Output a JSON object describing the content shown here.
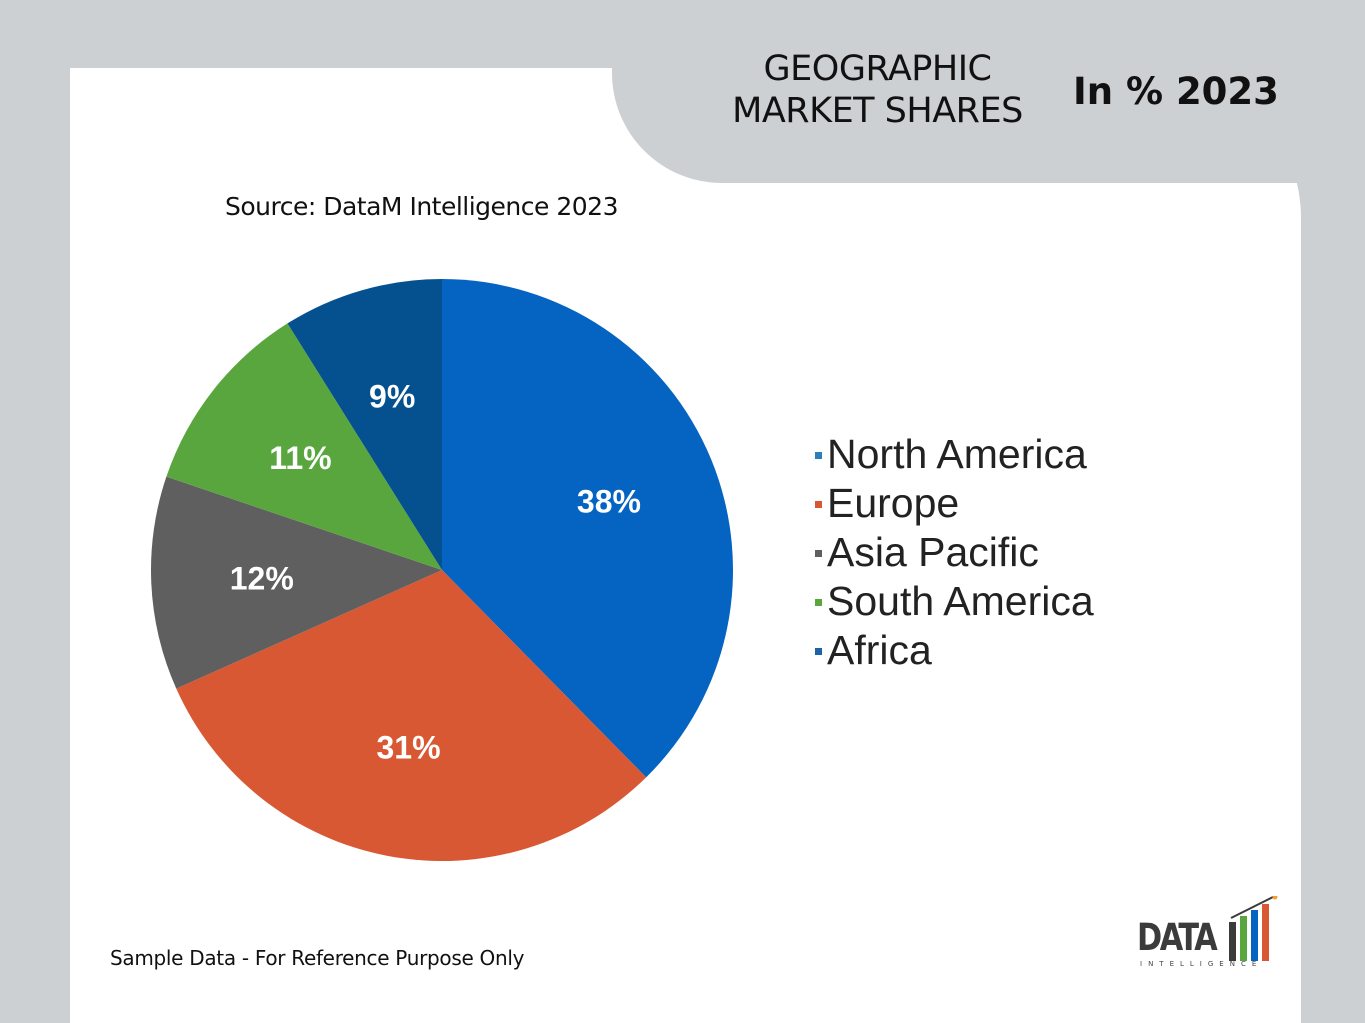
{
  "header": {
    "title_line1": "GEOGRAPHIC",
    "title_line2": "MARKET SHARES",
    "subtitle": "In % 2023"
  },
  "source": "Source: DataM Intelligence 2023",
  "footnote": "Sample Data - For Reference Purpose Only",
  "logo": {
    "name": "DATA",
    "tagline": "INTELLIGENCE"
  },
  "chart_data": {
    "type": "pie",
    "categories": [
      "North America",
      "Europe",
      "Asia Pacific",
      "South America",
      "Africa"
    ],
    "values": [
      38,
      31,
      12,
      11,
      9
    ],
    "labels": [
      "38%",
      "31%",
      "12%",
      "11%",
      "9%"
    ],
    "colors": [
      "#0563c1",
      "#d85834",
      "#5f5f5f",
      "#5aa63e",
      "#05518f"
    ],
    "legend_swatch_colors": [
      "#2e7fb8",
      "#d85834",
      "#5f5f5f",
      "#5aa63e",
      "#1a63a8"
    ],
    "legend_position": "right",
    "start": "12 o'clock",
    "direction": "clockwise"
  }
}
